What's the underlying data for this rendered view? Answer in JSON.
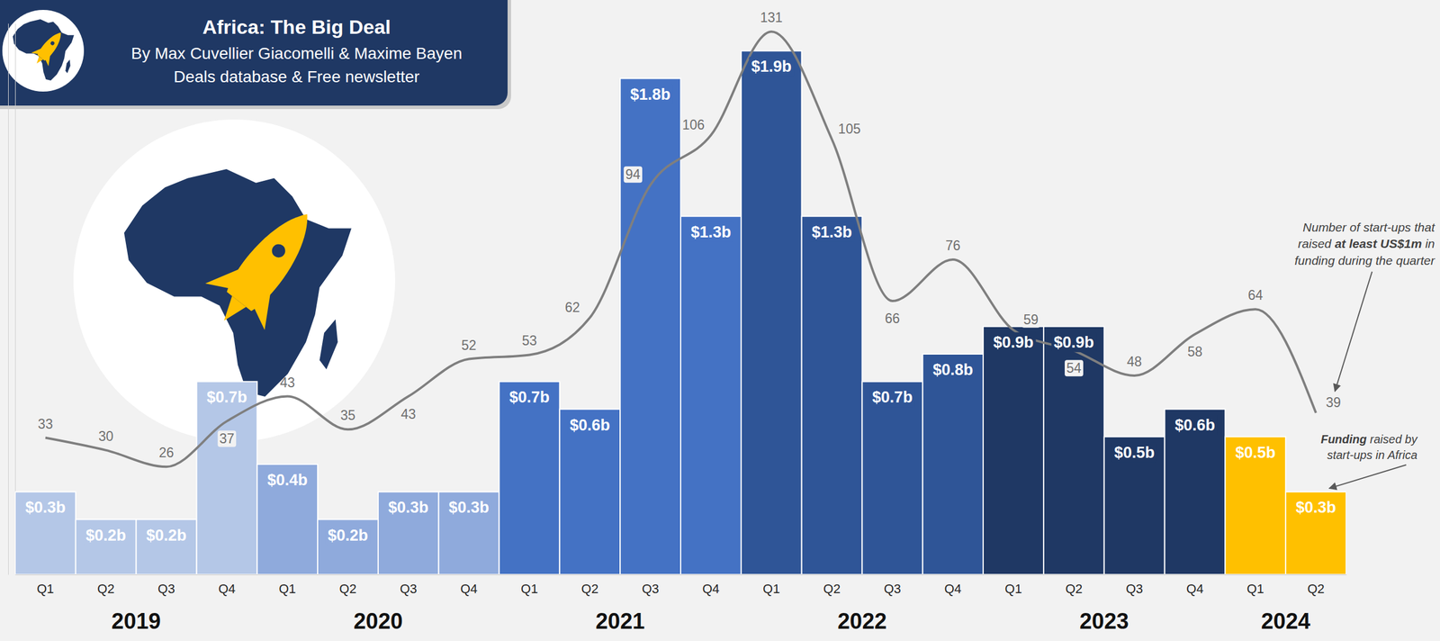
{
  "chart_data": {
    "type": "bar",
    "title": "Africa: The Big Deal",
    "subtitle": [
      "By Max Cuvellier Giacomelli & Maxime Bayen",
      "Deals database & Free newsletter"
    ],
    "categories": [
      "Q1",
      "Q2",
      "Q3",
      "Q4",
      "Q1",
      "Q2",
      "Q3",
      "Q4",
      "Q1",
      "Q2",
      "Q3",
      "Q4",
      "Q1",
      "Q2",
      "Q3",
      "Q4",
      "Q1",
      "Q2",
      "Q3",
      "Q4",
      "Q1",
      "Q2"
    ],
    "x_groups": [
      {
        "label": "2019",
        "size": 4
      },
      {
        "label": "2020",
        "size": 4
      },
      {
        "label": "2021",
        "size": 4
      },
      {
        "label": "2022",
        "size": 4
      },
      {
        "label": "2023",
        "size": 4
      },
      {
        "label": "2024",
        "size": 2
      }
    ],
    "series": [
      {
        "type": "bar",
        "values": [
          0.3,
          0.2,
          0.2,
          0.7,
          0.4,
          0.2,
          0.3,
          0.3,
          0.7,
          0.6,
          1.8,
          1.3,
          1.9,
          1.3,
          0.7,
          0.8,
          0.9,
          0.9,
          0.5,
          0.6,
          0.5,
          0.3
        ],
        "value_labels": [
          "$0.3b",
          "$0.2b",
          "$0.2b",
          "$0.7b",
          "$0.4b",
          "$0.2b",
          "$0.3b",
          "$0.3b",
          "$0.7b",
          "$0.6b",
          "$1.8b",
          "$1.3b",
          "$1.9b",
          "$1.3b",
          "$0.7b",
          "$0.8b",
          "$0.9b",
          "$0.9b",
          "$0.5b",
          "$0.6b",
          "$0.5b",
          "$0.3b"
        ],
        "colors": [
          "#b4c7e7",
          "#b4c7e7",
          "#b4c7e7",
          "#b4c7e7",
          "#8faadc",
          "#8faadc",
          "#8faadc",
          "#8faadc",
          "#4472c4",
          "#4472c4",
          "#4472c4",
          "#4472c4",
          "#2f5597",
          "#2f5597",
          "#2f5597",
          "#2f5597",
          "#1f3864",
          "#1f3864",
          "#1f3864",
          "#1f3864",
          "#ffc000",
          "#ffc000"
        ],
        "data_labels": true
      },
      {
        "type": "line",
        "axis": "y2",
        "color": "#7f7f7f",
        "values": [
          33,
          30,
          26,
          37,
          43,
          35,
          43,
          52,
          53,
          62,
          94,
          106,
          131,
          105,
          66,
          76,
          59,
          54,
          48,
          58,
          64,
          39
        ],
        "data_labels": true
      }
    ],
    "ylim": [
      0,
      2
    ],
    "y2lim": [
      0,
      133
    ],
    "tick_labels": "x",
    "grid": false,
    "annotations": [
      {
        "text": "Number of start-ups that raised at least US$1m in funding during the quarter",
        "bold": "at least US$1m"
      },
      {
        "text": "Funding raised by start-ups in Africa",
        "bold": "Funding"
      }
    ]
  }
}
